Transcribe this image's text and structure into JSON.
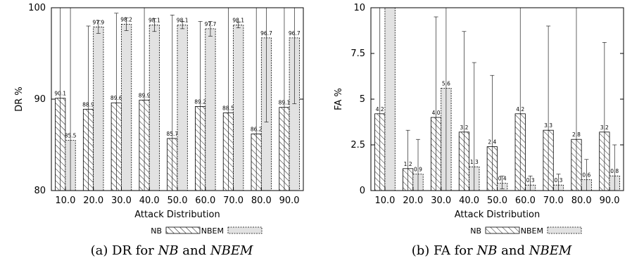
{
  "chart_data": [
    {
      "type": "bar",
      "categories": [
        "10.0",
        "20.0",
        "30.0",
        "40.0",
        "50.0",
        "60.0",
        "70.0",
        "80.0",
        "90.0"
      ],
      "series": [
        {
          "name": "NB",
          "values": [
            90.1,
            88.9,
            89.6,
            89.9,
            85.7,
            89.2,
            88.5,
            86.2,
            89.1
          ],
          "err_low": [
            80,
            80,
            80,
            80,
            80,
            80,
            80,
            80,
            80
          ],
          "err_high": [
            100,
            98.0,
            99.4,
            100,
            99.2,
            98.5,
            100,
            100,
            100
          ]
        },
        {
          "name": "NBEM",
          "values": [
            85.5,
            97.9,
            98.2,
            98.1,
            98.1,
            97.7,
            98.1,
            96.7,
            96.7
          ],
          "err_low": [
            80,
            97.2,
            97.5,
            97.4,
            97.7,
            96.9,
            97.8,
            87.5,
            89.5
          ],
          "err_high": [
            100,
            98.6,
            98.9,
            98.8,
            98.5,
            98.5,
            98.4,
            100,
            100
          ]
        }
      ],
      "data_labels": [
        [
          "90.1",
          "88.9",
          "89.6",
          "89.9",
          "85.7",
          "89.2",
          "88.5",
          "86.2",
          "89.1"
        ],
        [
          "85.5",
          "97.9",
          "98.2",
          "98.1",
          "98.1",
          "97.7",
          "98.1",
          "96.7",
          "96.7"
        ]
      ],
      "ylim": [
        80,
        100
      ],
      "yticks": [
        "80",
        "90",
        "100"
      ],
      "ylabel": "DR %",
      "xlabel": "Attack Distribution",
      "legend": [
        "NB",
        "NBEM"
      ],
      "caption": {
        "prefix": "(a) DR for ",
        "a": "NB",
        "mid": " and ",
        "b": "NBEM"
      }
    },
    {
      "type": "bar",
      "categories": [
        "10.0",
        "20.0",
        "30.0",
        "40.0",
        "50.0",
        "60.0",
        "70.0",
        "80.0",
        "90.0"
      ],
      "series": [
        {
          "name": "NB",
          "values": [
            4.2,
            1.2,
            4.0,
            3.2,
            2.4,
            4.2,
            3.3,
            2.8,
            3.2
          ],
          "err_low": [
            0,
            0,
            0,
            0,
            0,
            0,
            0,
            0,
            0
          ],
          "err_high": [
            10,
            3.3,
            9.5,
            8.7,
            6.3,
            10,
            9.0,
            10,
            8.1
          ]
        },
        {
          "name": "NBEM",
          "values": [
            10,
            0.9,
            5.6,
            1.3,
            0.4,
            0.3,
            0.3,
            0.6,
            0.8
          ],
          "err_low": [
            10,
            0,
            0,
            0,
            0.1,
            0,
            0,
            0,
            0
          ],
          "err_high": [
            10,
            2.8,
            10,
            7.0,
            0.8,
            0.8,
            0.9,
            1.7,
            2.5
          ]
        }
      ],
      "data_labels": [
        [
          "4.2",
          "1.2",
          "4.0",
          "3.2",
          "2.4",
          "4.2",
          "3.3",
          "2.8",
          "3.2"
        ],
        [
          "",
          "0.9",
          "5.6",
          "1.3",
          "0.4",
          "0.3",
          "0.3",
          "0.6",
          "0.8"
        ]
      ],
      "ylim": [
        0,
        10
      ],
      "yticks": [
        "0",
        "2.5",
        "5",
        "7.5",
        "10"
      ],
      "ylabel": "FA %",
      "xlabel": "Attack Distribution",
      "legend": [
        "NB",
        "NBEM"
      ],
      "caption": {
        "prefix": "(b) FA for ",
        "a": "NB",
        "mid": " and ",
        "b": "NBEM"
      }
    }
  ],
  "colors": {
    "nbem_fill": "#e2e2e2",
    "axis": "#000000"
  }
}
